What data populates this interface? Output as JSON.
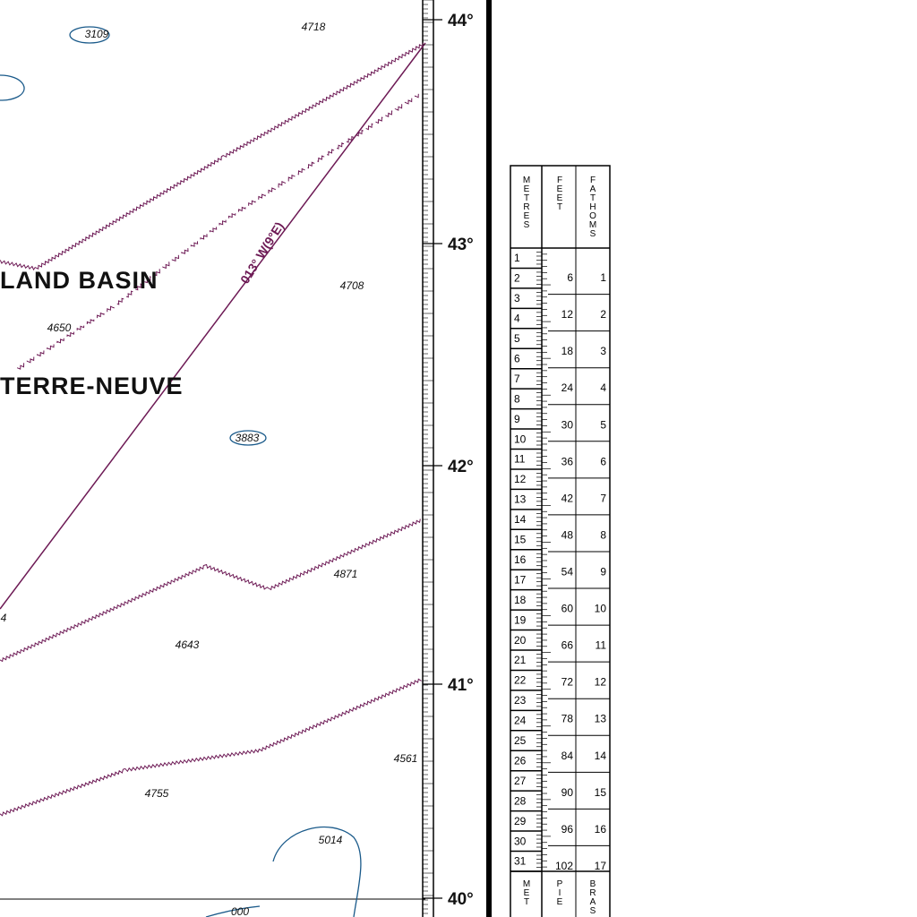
{
  "map": {
    "place_names": [
      "LAND BASIN",
      "TERRE-NEUVE"
    ],
    "bearing_label": "013° W(9°E)",
    "soundings": [
      "3109",
      "4718",
      "4708",
      "4650",
      "3883",
      "4871",
      "4643",
      "4561",
      "4755",
      "5014",
      "4",
      "000"
    ],
    "latitudes": [
      "44°",
      "43°",
      "42°",
      "41°",
      "40°"
    ]
  },
  "conversion_table": {
    "headers": [
      "METRES",
      "FEET",
      "FATHOMS"
    ],
    "metres": [
      1,
      2,
      3,
      4,
      5,
      6,
      7,
      8,
      9,
      10,
      11,
      12,
      13,
      14,
      15,
      16,
      17,
      18,
      19,
      20,
      21,
      22,
      23,
      24,
      25,
      26,
      27,
      28,
      29,
      30,
      31
    ],
    "feet": [
      6,
      12,
      18,
      24,
      30,
      36,
      42,
      48,
      54,
      60,
      66,
      72,
      78,
      84,
      90,
      96,
      102
    ],
    "fathoms": [
      1,
      2,
      3,
      4,
      5,
      6,
      7,
      8,
      9,
      10,
      11,
      12,
      13,
      14,
      15,
      16,
      17
    ],
    "footer_headers": [
      "MET",
      "PIE",
      "BRAS"
    ]
  }
}
